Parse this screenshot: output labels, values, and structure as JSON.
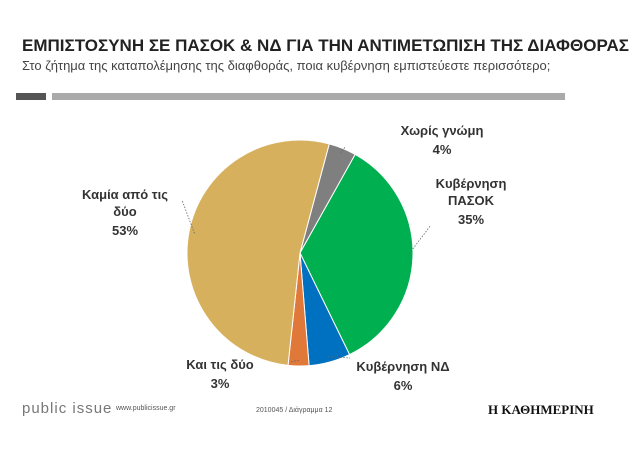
{
  "chart_data": {
    "type": "pie",
    "title": "ΕΜΠΙΣΤΟΣΥΝΗ ΣΕ ΠΑΣΟΚ & ΝΔ ΓΙΑ ΤΗΝ ΑΝΤΙΜΕΤΩΠΙΣΗ ΤΗΣ ΔΙΑΦΘΟΡΑΣ",
    "subtitle": "Στο ζήτημα της καταπολέμησης της διαφθοράς, ποια κυβέρνηση εμπιστεύεστε περισσότερο;",
    "categories": [
      "Χωρίς γνώμη",
      "Κυβέρνηση ΠΑΣΟΚ",
      "Κυβέρνηση ΝΔ",
      "Και τις δύο",
      "Καμία από τις δύο"
    ],
    "values": [
      4,
      35,
      6,
      3,
      53
    ],
    "value_labels": [
      "4%",
      "35%",
      "6%",
      "3%",
      "53%"
    ],
    "colors": [
      "#7f7f7f",
      "#00b050",
      "#0070c0",
      "#e0783a",
      "#d7b05e"
    ]
  },
  "footer": {
    "brand": "public issue",
    "url": "www.publicissue.gr",
    "code": "2010045 / Διάγραμμα 12",
    "newspaper": "Η ΚΑΘΗΜΕΡΙΝΗ"
  }
}
